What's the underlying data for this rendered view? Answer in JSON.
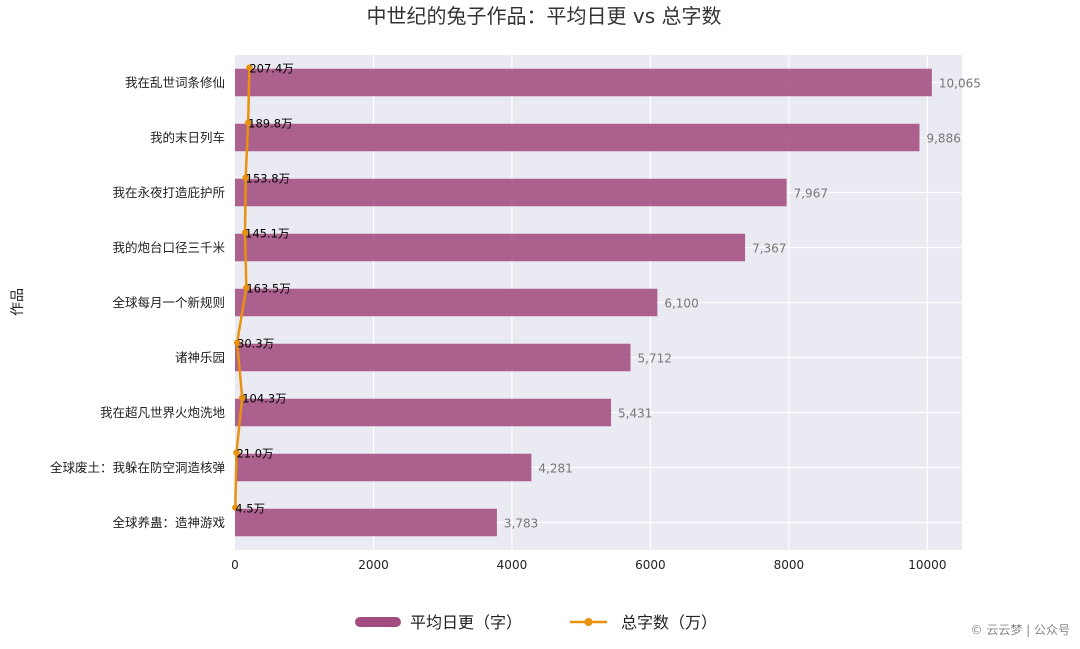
{
  "watermark": "© 云云梦 | 公众号",
  "chart_data": {
    "type": "bar",
    "orientation": "horizontal",
    "title": "中世纪的兔子作品：平均日更 vs 总字数",
    "ylabel": "作品",
    "xlabel": "",
    "xlim": [
      0,
      10500
    ],
    "xticks": [
      0,
      2000,
      4000,
      6000,
      8000,
      10000
    ],
    "xtick_labels": [
      "0",
      "2000",
      "4000",
      "6000",
      "8000",
      "10000"
    ],
    "grid": true,
    "legend_position": "bottom-center",
    "bar_color": "#A34C7F",
    "line_color": "#E8920F",
    "plot_background": "#EAEAF2",
    "categories": [
      "我在乱世词条修仙",
      "我的末日列车",
      "我在永夜打造庇护所",
      "我的炮台口径三千米",
      "全球每月一个新规则",
      "诸神乐园",
      "我在超凡世界火炮洗地",
      "全球废土：我躲在防空洞造核弹",
      "全球养蛊：造神游戏"
    ],
    "series": [
      {
        "name": "平均日更（字）",
        "kind": "bar",
        "values": [
          10065,
          9886,
          7967,
          7367,
          6100,
          5712,
          5431,
          4281,
          3783
        ],
        "value_labels": [
          "10,065",
          "9,886",
          "7,967",
          "7,367",
          "6,100",
          "5,712",
          "5,431",
          "4,281",
          "3,783"
        ]
      },
      {
        "name": "总字数（万）",
        "kind": "line",
        "values": [
          207.4,
          189.8,
          153.8,
          145.1,
          163.5,
          30.3,
          104.3,
          21.0,
          4.5
        ],
        "value_labels": [
          "207.4万",
          "189.8万",
          "153.8万",
          "145.1万",
          "163.5万",
          "30.3万",
          "104.3万",
          "21.0万",
          "4.5万"
        ]
      }
    ]
  }
}
